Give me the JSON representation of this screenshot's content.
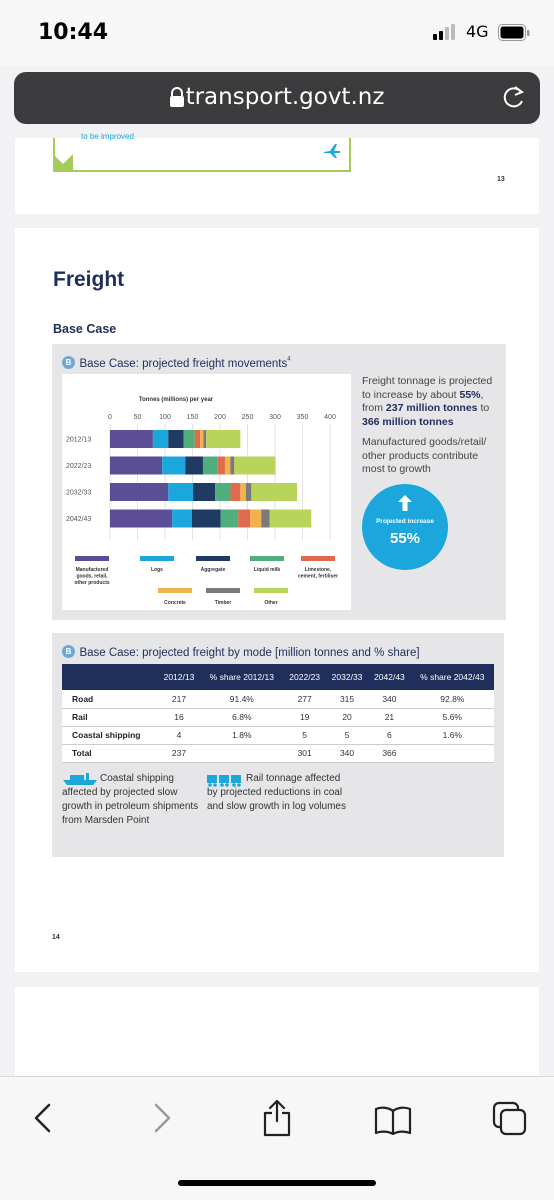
{
  "status_bar": {
    "time": "10:44",
    "network": "4G"
  },
  "browser": {
    "url": "transport.govt.nz"
  },
  "prev_page": {
    "page_number": "13",
    "snippet": "to be improved"
  },
  "page": {
    "number": "14",
    "heading": "Freight",
    "subheading": "Base Case",
    "chart_panel_title": "Base Case: projected freight movements",
    "chart_panel_footnote": "4",
    "bullet_letter": "B",
    "side_line1": "Freight tonnage is projected to increase by about ",
    "side_bold1": "55%",
    "side_line2": ", from ",
    "side_bold2": "237 million tonnes",
    "side_line3": " to ",
    "side_bold3": "366 million tonnes",
    "side_para2": "Manufactured goods/retail/ other products contribute most to growth",
    "badge_label": "Projected increase",
    "badge_value": "55%",
    "table_panel_title": "Base Case: projected freight by mode [million tonnes and % share]",
    "note_coastal_title": "Coastal shipping",
    "note_coastal_body": "affected by projected slow growth in petroleum shipments from Marsden Point",
    "note_rail_title": "Rail tonnage affected",
    "note_rail_body": "by projected reductions in coal and slow growth in log volumes"
  },
  "table": {
    "headers": [
      "",
      "2012/13",
      "% share 2012/13",
      "2022/23",
      "2032/33",
      "2042/43",
      "% share 2042/43"
    ],
    "rows": [
      [
        "Road",
        "217",
        "91.4%",
        "277",
        "315",
        "340",
        "92.8%"
      ],
      [
        "Rail",
        "16",
        "6.8%",
        "19",
        "20",
        "21",
        "5.6%"
      ],
      [
        "Coastal shipping",
        "4",
        "1.8%",
        "5",
        "5",
        "6",
        "1.6%"
      ],
      [
        "Total",
        "237",
        "",
        "301",
        "340",
        "366",
        ""
      ]
    ]
  },
  "chart_data": {
    "type": "bar",
    "orientation": "horizontal",
    "stacked": true,
    "title": "Tonnes (millions) per year",
    "categories": [
      "2012/13",
      "2022/23",
      "2032/33",
      "2042/43"
    ],
    "xticks": [
      "0",
      "50",
      "100",
      "150",
      "200",
      "250",
      "300",
      "350",
      "400"
    ],
    "xlim": [
      0,
      400
    ],
    "grid": true,
    "legend_position": "bottom",
    "series": [
      {
        "name": "Manufactured goods, retail, other products",
        "color": "#5b4e96",
        "values": [
          78,
          95,
          106,
          113
        ]
      },
      {
        "name": "Logs",
        "color": "#1ba6dc",
        "values": [
          28,
          42,
          45,
          36
        ]
      },
      {
        "name": "Aggregate",
        "color": "#1f3a63",
        "values": [
          28,
          32,
          40,
          52
        ]
      },
      {
        "name": "Liquid milk",
        "color": "#4fae7b",
        "values": [
          20,
          27,
          28,
          32
        ]
      },
      {
        "name": "Limestone, cement, fertiliser",
        "color": "#de6b4e",
        "values": [
          10,
          13,
          18,
          22
        ]
      },
      {
        "name": "Concrete",
        "color": "#f2b24e",
        "values": [
          6,
          10,
          10,
          20
        ]
      },
      {
        "name": "Timber",
        "color": "#7a7a7a",
        "values": [
          5,
          7,
          10,
          15
        ]
      },
      {
        "name": "Other",
        "color": "#b9d45b",
        "values": [
          62,
          75,
          83,
          76
        ]
      }
    ]
  },
  "toolbar": {
    "back": "back-icon",
    "forward": "forward-icon",
    "share": "share-icon",
    "bookmarks": "book-icon",
    "tabs": "tabs-icon"
  }
}
